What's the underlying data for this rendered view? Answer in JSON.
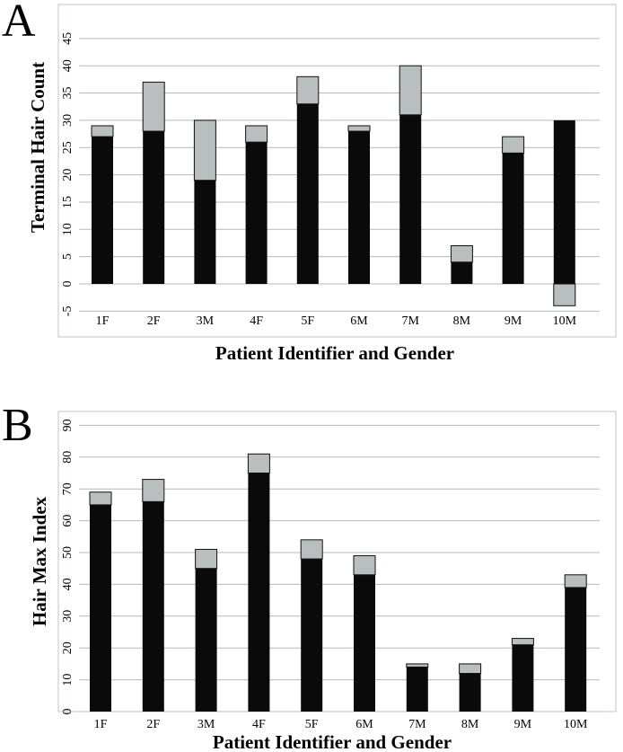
{
  "panels": [
    {
      "letter": "A",
      "chart_data": {
        "type": "bar",
        "stacked": true,
        "categories": [
          "1F",
          "2F",
          "3M",
          "4F",
          "5F",
          "6M",
          "7M",
          "8M",
          "9M",
          "10M"
        ],
        "series": [
          {
            "color": "#0a0a0a",
            "values": [
              27,
              28,
              19,
              26,
              33,
              28,
              31,
              4,
              24,
              30
            ]
          },
          {
            "color": "#b9bebe",
            "values": [
              2,
              9,
              11,
              3,
              5,
              1,
              9,
              3,
              3,
              -4
            ]
          }
        ],
        "xlabel": "Patient Identifier and Gender",
        "ylabel": "Terminal Hair Count",
        "ylim": [
          -5,
          45
        ],
        "yticks": [
          -5,
          0,
          5,
          10,
          15,
          20,
          25,
          30,
          35,
          40,
          45
        ],
        "grid": true
      }
    },
    {
      "letter": "B",
      "chart_data": {
        "type": "bar",
        "stacked": true,
        "categories": [
          "1F",
          "2F",
          "3M",
          "4F",
          "5F",
          "6M",
          "7M",
          "8M",
          "9M",
          "10M"
        ],
        "series": [
          {
            "color": "#0a0a0a",
            "values": [
              65,
              66,
              45,
              75,
              48,
              43,
              14,
              12,
              21,
              39
            ]
          },
          {
            "color": "#b9bebe",
            "values": [
              4,
              7,
              6,
              6,
              6,
              6,
              1,
              3,
              2,
              4
            ]
          }
        ],
        "xlabel": "Patient Identifier and Gender",
        "ylabel": "Hair Max Index",
        "ylim": [
          0,
          90
        ],
        "yticks": [
          0,
          10,
          20,
          30,
          40,
          50,
          60,
          70,
          80,
          90
        ],
        "grid": true
      }
    }
  ]
}
